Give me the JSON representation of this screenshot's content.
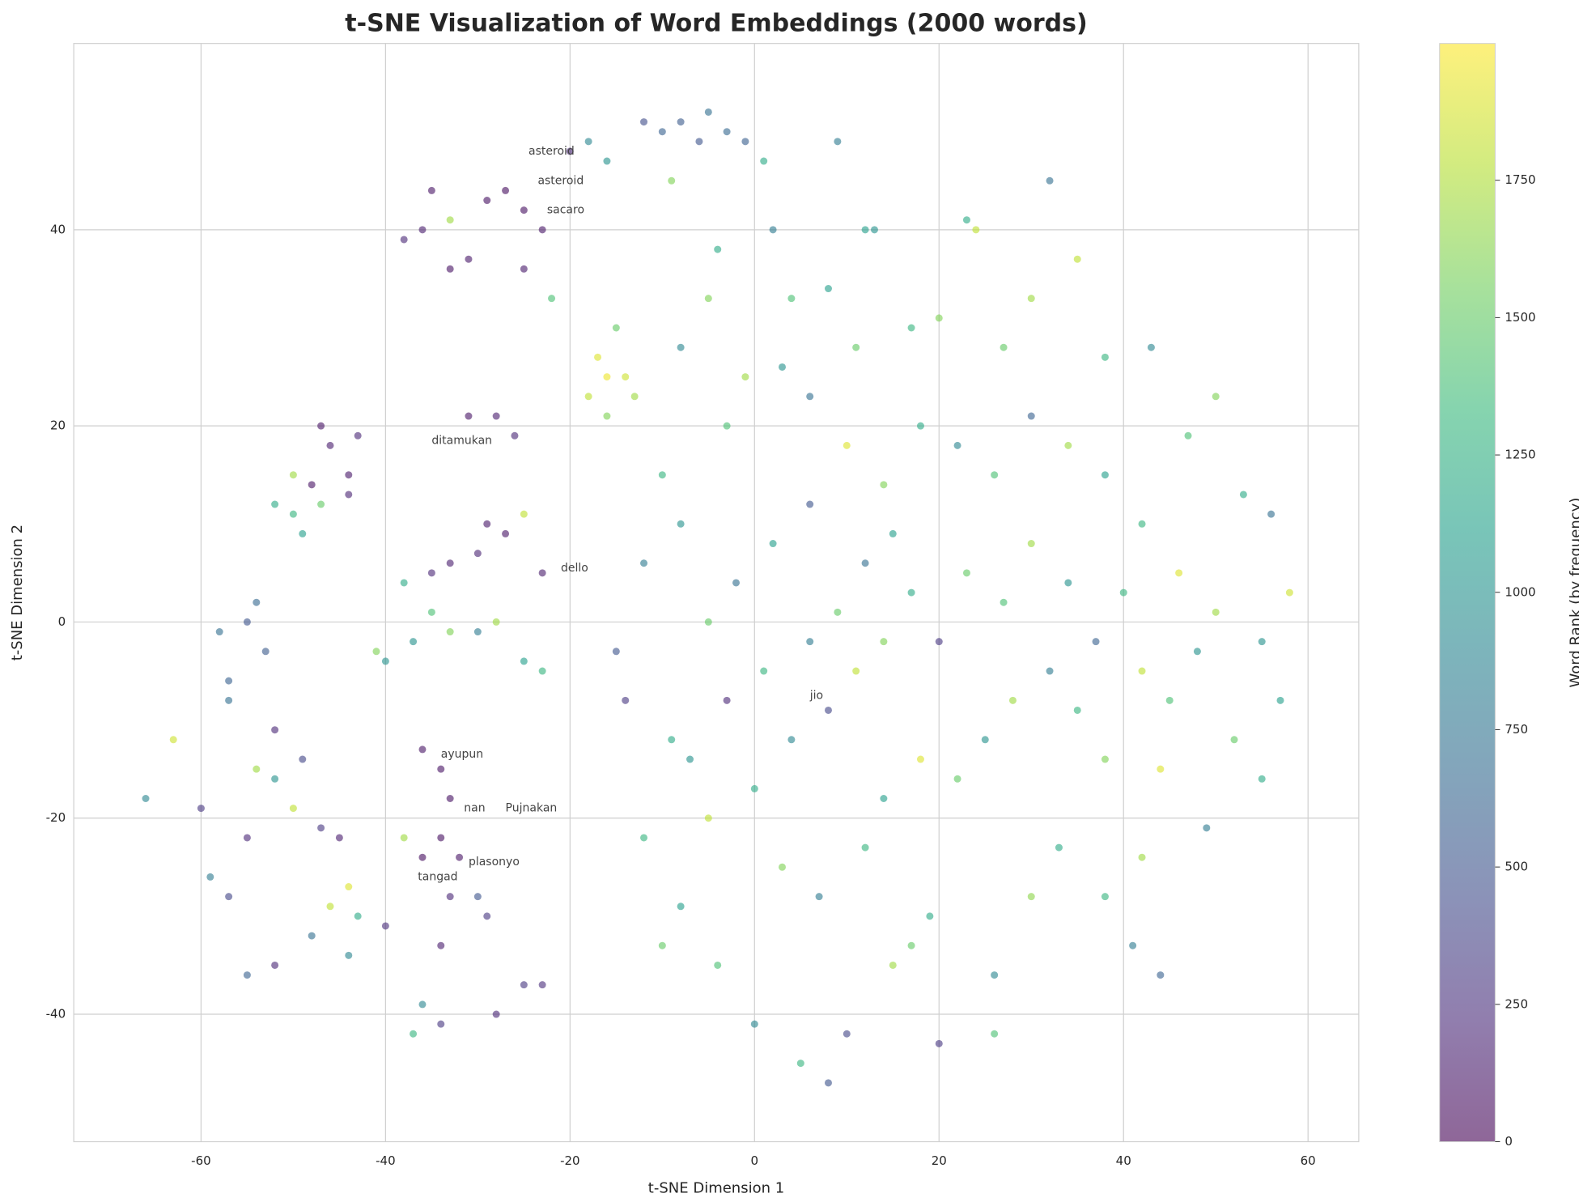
{
  "chart_data": {
    "type": "scatter",
    "title": "t-SNE Visualization of Word Embeddings (2000 words)",
    "xlabel": "t-SNE Dimension 1",
    "ylabel": "t-SNE Dimension 2",
    "colorbar_label": "Word Rank (by frequency)",
    "colormap": "viridis",
    "xlim": [
      -73.8,
      65.5
    ],
    "ylim": [
      -53,
      59
    ],
    "clim": [
      0,
      1999
    ],
    "xticks": [
      -60,
      -40,
      -20,
      0,
      20,
      40,
      60
    ],
    "yticks": [
      -40,
      -20,
      0,
      20,
      40
    ],
    "cticks": [
      0,
      250,
      500,
      750,
      1000,
      1250,
      1500,
      1750
    ],
    "grid": true,
    "x": [
      -10,
      -8,
      -5,
      -3,
      -6,
      -1,
      -12,
      -35,
      -33,
      -36,
      -38,
      -31,
      -33,
      -29,
      -27,
      -25,
      -23,
      -25,
      -22,
      -20,
      -18,
      -16,
      -47,
      -46,
      -44,
      -43,
      -44,
      -48,
      -52,
      -50,
      -50,
      -49,
      -47,
      -31,
      -28,
      -26,
      -29,
      -27,
      -25,
      -33,
      -35,
      -30,
      -23,
      -38,
      -35,
      -33,
      -37,
      -30,
      -28,
      -25,
      -23,
      -41,
      -40,
      -58,
      -57,
      -55,
      -54,
      -57,
      -53,
      -17,
      -16,
      -18,
      -14,
      -13,
      -16,
      -15,
      -66,
      -63,
      -60,
      -59,
      -57,
      -55,
      -52,
      -52,
      -54,
      -50,
      -49,
      -47,
      -45,
      -44,
      -46,
      -43,
      -40,
      -44,
      -48,
      -52,
      -55,
      -38,
      -36,
      -34,
      -33,
      -34,
      -36,
      -32,
      -30,
      -29,
      -33,
      -34,
      -36,
      -37,
      -34,
      -28,
      -25,
      -23,
      2,
      4,
      8,
      13,
      17,
      20,
      23,
      24,
      27,
      30,
      32,
      35,
      38,
      43,
      47,
      50,
      53,
      56,
      58,
      55,
      57,
      52,
      55,
      49,
      44,
      42,
      41,
      44,
      38,
      33,
      30,
      26,
      26,
      20,
      17,
      19,
      15,
      10,
      8,
      5,
      0,
      -4,
      -8,
      -10,
      -12,
      -7,
      -5,
      0,
      3,
      7,
      12,
      14,
      18,
      22,
      25,
      28,
      32,
      35,
      38,
      42,
      45,
      48,
      50,
      46,
      42,
      38,
      34,
      30,
      26,
      22,
      18,
      14,
      10,
      6,
      2,
      -2,
      -5,
      -3,
      1,
      4,
      8,
      11,
      14,
      17,
      20,
      23,
      27,
      30,
      34,
      37,
      40,
      12,
      9,
      6,
      15,
      -10,
      -8,
      -12,
      -15,
      -14,
      -9,
      -8,
      -3,
      -1,
      3,
      6,
      11,
      -5,
      -9,
      -4,
      1,
      9,
      12
    ],
    "series": [
      {
        "name": "words",
        "values": [
          50,
          51,
          52,
          50,
          49,
          49,
          51,
          44,
          41,
          40,
          39,
          37,
          36,
          43,
          44,
          42,
          40,
          36,
          33,
          48,
          49,
          47,
          20,
          18,
          15,
          19,
          13,
          14,
          12,
          15,
          11,
          9,
          12,
          21,
          21,
          19,
          10,
          9,
          11,
          6,
          5,
          7,
          5,
          4,
          1,
          -1,
          -2,
          -1,
          0,
          -4,
          -5,
          -3,
          -4,
          -1,
          -6,
          0,
          2,
          -8,
          -3,
          27,
          25,
          23,
          25,
          23,
          21,
          30,
          -18,
          -12,
          -19,
          -26,
          -28,
          -22,
          -11,
          -16,
          -15,
          -19,
          -14,
          -21,
          -22,
          -27,
          -29,
          -30,
          -31,
          -34,
          -32,
          -35,
          -36,
          -22,
          -13,
          -15,
          -18,
          -22,
          -24,
          -24,
          -28,
          -30,
          -28,
          -33,
          -39,
          -42,
          -41,
          -40,
          -37,
          -37,
          40,
          33,
          34,
          40,
          30,
          31,
          41,
          40,
          28,
          33,
          45,
          37,
          27,
          28,
          19,
          23,
          13,
          11,
          3,
          -2,
          -8,
          -12,
          -16,
          -21,
          -15,
          -24,
          -33,
          -36,
          -28,
          -23,
          -28,
          -36,
          -42,
          -43,
          -33,
          -30,
          -35,
          -42,
          -47,
          -45,
          -41,
          -35,
          -29,
          -33,
          -22,
          -14,
          -20,
          -17,
          -25,
          -28,
          -23,
          -18,
          -14,
          -16,
          -12,
          -8,
          -5,
          -9,
          -14,
          -5,
          -8,
          -3,
          1,
          5,
          10,
          15,
          18,
          21,
          15,
          18,
          20,
          14,
          18,
          12,
          8,
          4,
          0,
          -8,
          -5,
          -12,
          -9,
          -5,
          -2,
          3,
          -2,
          5,
          2,
          8,
          4,
          -2,
          3,
          6,
          1,
          -2,
          9,
          15,
          10,
          6,
          -3,
          -8,
          -12,
          28,
          20,
          25,
          26,
          23,
          28,
          33,
          45,
          38,
          47,
          49,
          40
        ],
        "c": [
          600,
          550,
          700,
          650,
          500,
          580,
          450,
          100,
          1700,
          150,
          200,
          120,
          90,
          80,
          60,
          70,
          110,
          130,
          1400,
          200,
          900,
          1000,
          100,
          150,
          120,
          200,
          180,
          90,
          1200,
          1700,
          1300,
          1100,
          1500,
          100,
          150,
          200,
          120,
          100,
          1800,
          150,
          200,
          180,
          140,
          1200,
          1400,
          1600,
          1000,
          800,
          1700,
          1100,
          1300,
          1600,
          1000,
          700,
          600,
          500,
          650,
          700,
          550,
          1900,
          1950,
          1800,
          1850,
          1700,
          1600,
          1500,
          900,
          1850,
          300,
          800,
          400,
          200,
          200,
          1000,
          1700,
          1800,
          400,
          300,
          150,
          1900,
          1800,
          1200,
          250,
          900,
          700,
          200,
          600,
          1700,
          100,
          90,
          80,
          70,
          60,
          100,
          500,
          300,
          200,
          150,
          900,
          1300,
          300,
          200,
          300,
          250,
          800,
          1400,
          1100,
          1000,
          1300,
          1600,
          1200,
          1800,
          1500,
          1700,
          700,
          1800,
          1300,
          900,
          1400,
          1600,
          1200,
          700,
          1850,
          1000,
          1100,
          1500,
          1200,
          800,
          1900,
          1700,
          800,
          600,
          1300,
          1200,
          1650,
          900,
          1400,
          300,
          1500,
          1200,
          1700,
          400,
          500,
          1300,
          900,
          1400,
          1100,
          1500,
          1300,
          1000,
          1800,
          1200,
          1600,
          800,
          1300,
          1100,
          1900,
          1500,
          1000,
          1700,
          800,
          1300,
          1600,
          1800,
          1400,
          1000,
          1700,
          1900,
          1300,
          1100,
          1700,
          600,
          1400,
          900,
          1200,
          1600,
          1900,
          500,
          1100,
          700,
          1500,
          200,
          1300,
          900,
          400,
          1800,
          1600,
          1200,
          300,
          1500,
          1400,
          1700,
          1000,
          600,
          1300,
          700,
          1500,
          800,
          1100,
          1300,
          1000,
          800,
          500,
          300,
          1200,
          900,
          1400,
          1700,
          1000,
          700,
          1500,
          1600,
          1600,
          1200,
          1200,
          800,
          1100
        ]
      }
    ],
    "annotations": [
      {
        "text": "asteroid",
        "x": -24.5,
        "y": 48
      },
      {
        "text": "asteroid",
        "x": -23.5,
        "y": 45
      },
      {
        "text": "sacaro",
        "x": -22.5,
        "y": 42
      },
      {
        "text": "ditamukan",
        "x": -35,
        "y": 18.5
      },
      {
        "text": "dello",
        "x": -21,
        "y": 5.5
      },
      {
        "text": "jio",
        "x": 6,
        "y": -7.5
      },
      {
        "text": "ayupun",
        "x": -34,
        "y": -13.5
      },
      {
        "text": "nan",
        "x": -31.5,
        "y": -19
      },
      {
        "text": "Pujnakan",
        "x": -27,
        "y": -19
      },
      {
        "text": "plasonyo",
        "x": -31,
        "y": -24.5
      },
      {
        "text": "tangad",
        "x": -36.5,
        "y": -26
      }
    ]
  }
}
